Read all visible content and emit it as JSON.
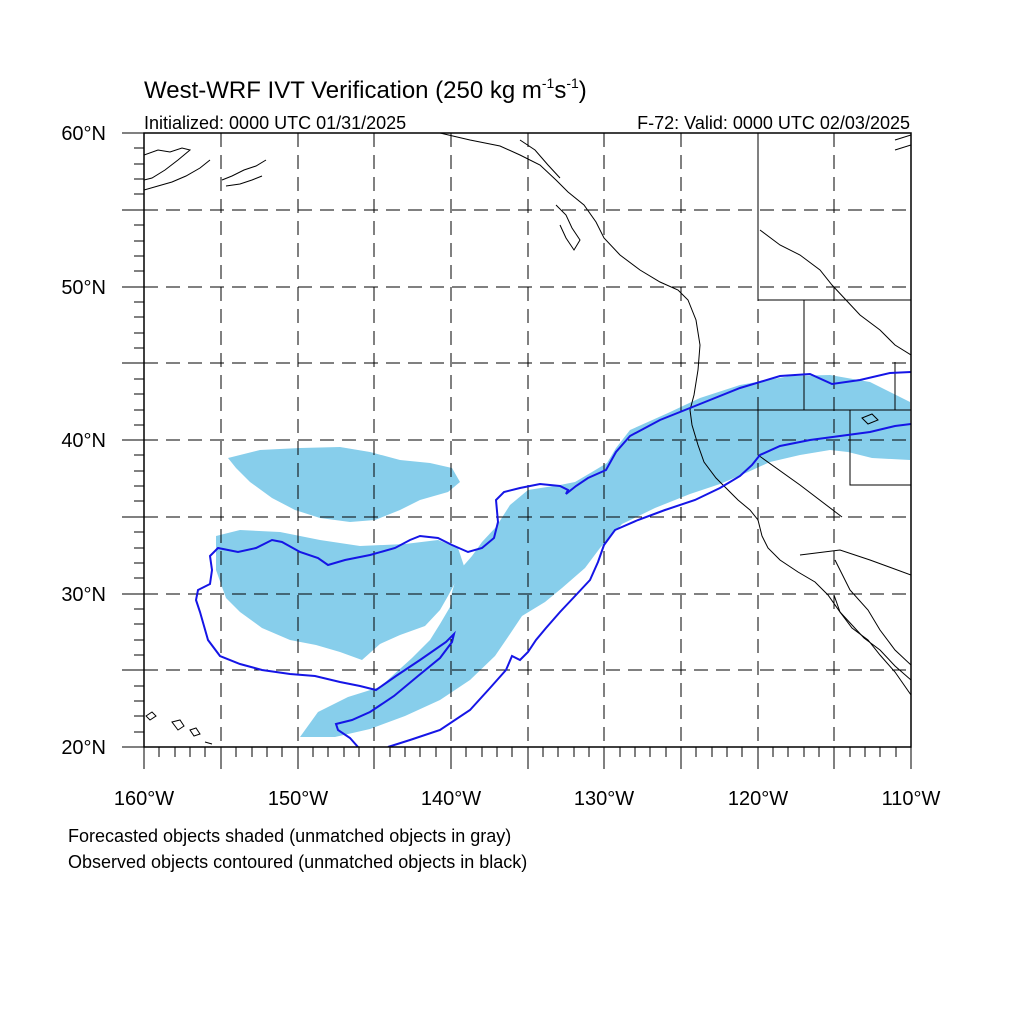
{
  "title": {
    "main": "West-WRF IVT Verification (250 kg m",
    "sup1": "-1",
    "mid": "s",
    "sup2": "-1",
    "end": ")"
  },
  "initialized": "Initialized: 0000 UTC 01/31/2025",
  "valid": "F-72: Valid: 0000 UTC 02/03/2025",
  "lat_labels": [
    "60°N",
    "50°N",
    "40°N",
    "30°N",
    "20°N"
  ],
  "lon_labels": [
    "160°W",
    "150°W",
    "140°W",
    "130°W",
    "120°W",
    "110°W"
  ],
  "notes": [
    "Forecasted objects shaded (unmatched objects in gray)",
    "Observed objects contoured (unmatched objects in black)"
  ],
  "map": {
    "lat_range": [
      20,
      60
    ],
    "lon_range": [
      -160,
      -110
    ],
    "grid_spacing_deg": 5,
    "forecast_fill_color": "#87ceeb",
    "observed_contour_color": "#1515e6",
    "coastline_color": "#000000"
  }
}
